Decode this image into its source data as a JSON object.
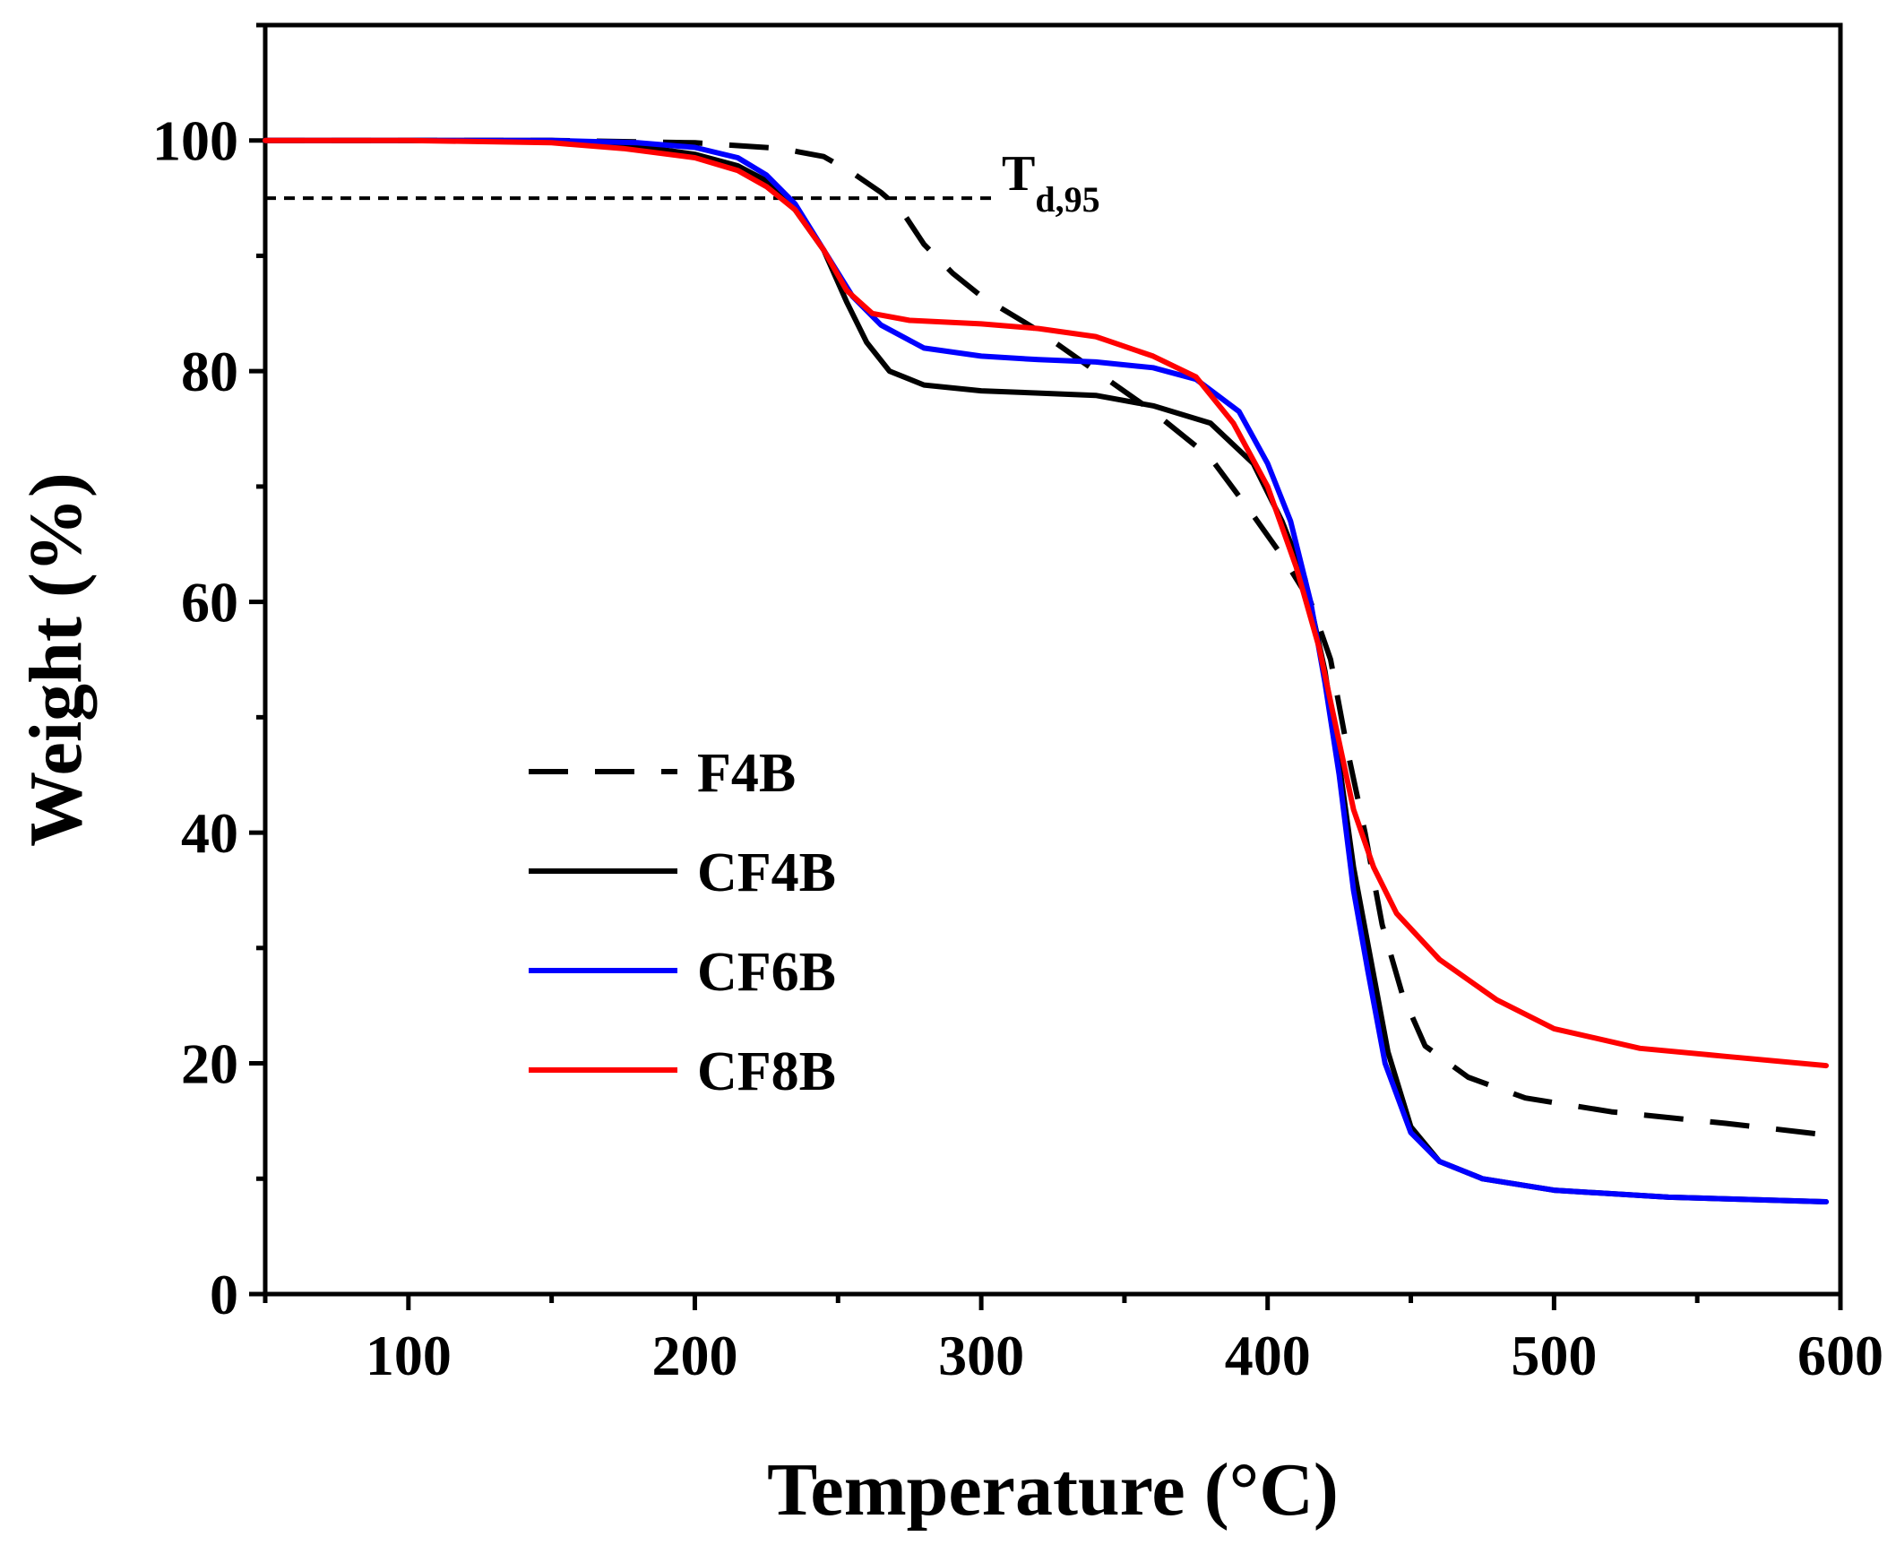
{
  "chart_data": {
    "type": "line",
    "title": "",
    "xlabel": "Temperature (°C)",
    "ylabel": "Weight (%)",
    "xlim": [
      50,
      600
    ],
    "ylim": [
      0,
      110
    ],
    "xticks": [
      100,
      200,
      300,
      400,
      500,
      600
    ],
    "yticks": [
      0,
      20,
      40,
      60,
      80,
      100
    ],
    "x_minor_step": 50,
    "y_minor_step": 10,
    "grid": false,
    "legend_position": "left-bottom",
    "reference_line": {
      "y": 95,
      "x_start": 50,
      "x_end": 305,
      "style": "dotted"
    },
    "annotation": {
      "base": "T",
      "subscript": "d,95"
    },
    "series": [
      {
        "name": "F4B",
        "color": "#000000",
        "style": "dashed",
        "points": [
          [
            50,
            100
          ],
          [
            100,
            100
          ],
          [
            150,
            100
          ],
          [
            200,
            99.8
          ],
          [
            230,
            99.3
          ],
          [
            245,
            98.6
          ],
          [
            255,
            97.2
          ],
          [
            265,
            95.5
          ],
          [
            272,
            94
          ],
          [
            280,
            91
          ],
          [
            290,
            88.5
          ],
          [
            300,
            86.5
          ],
          [
            320,
            83.5
          ],
          [
            340,
            80
          ],
          [
            360,
            76.5
          ],
          [
            380,
            72.5
          ],
          [
            395,
            67.5
          ],
          [
            405,
            64
          ],
          [
            415,
            60
          ],
          [
            422,
            55
          ],
          [
            428,
            47
          ],
          [
            434,
            40
          ],
          [
            440,
            32
          ],
          [
            447,
            26
          ],
          [
            455,
            21.5
          ],
          [
            470,
            18.8
          ],
          [
            490,
            17
          ],
          [
            520,
            15.8
          ],
          [
            560,
            14.8
          ],
          [
            595,
            13.8
          ]
        ]
      },
      {
        "name": "CF4B",
        "color": "#000000",
        "style": "solid",
        "points": [
          [
            50,
            100
          ],
          [
            100,
            100
          ],
          [
            150,
            100
          ],
          [
            180,
            99.5
          ],
          [
            200,
            98.8
          ],
          [
            215,
            97.8
          ],
          [
            225,
            96.5
          ],
          [
            235,
            94
          ],
          [
            245,
            90.5
          ],
          [
            253,
            86
          ],
          [
            260,
            82.5
          ],
          [
            268,
            80
          ],
          [
            280,
            78.8
          ],
          [
            300,
            78.3
          ],
          [
            320,
            78.1
          ],
          [
            340,
            77.9
          ],
          [
            360,
            77
          ],
          [
            380,
            75.5
          ],
          [
            395,
            72
          ],
          [
            405,
            67
          ],
          [
            413,
            62
          ],
          [
            420,
            54
          ],
          [
            425,
            46
          ],
          [
            430,
            37
          ],
          [
            436,
            29
          ],
          [
            442,
            21
          ],
          [
            450,
            14.5
          ],
          [
            460,
            11.5
          ],
          [
            475,
            10
          ],
          [
            500,
            9
          ],
          [
            540,
            8.4
          ],
          [
            595,
            8
          ]
        ]
      },
      {
        "name": "CF6B",
        "color": "#0000ff",
        "style": "solid",
        "points": [
          [
            50,
            100
          ],
          [
            100,
            100
          ],
          [
            150,
            100
          ],
          [
            180,
            99.8
          ],
          [
            200,
            99.4
          ],
          [
            215,
            98.5
          ],
          [
            225,
            97
          ],
          [
            235,
            94.5
          ],
          [
            245,
            90.5
          ],
          [
            255,
            86.5
          ],
          [
            265,
            84
          ],
          [
            280,
            82
          ],
          [
            300,
            81.3
          ],
          [
            320,
            81
          ],
          [
            340,
            80.8
          ],
          [
            360,
            80.3
          ],
          [
            375,
            79.3
          ],
          [
            390,
            76.5
          ],
          [
            400,
            72
          ],
          [
            408,
            67
          ],
          [
            415,
            60
          ],
          [
            420,
            53
          ],
          [
            425,
            45
          ],
          [
            430,
            35
          ],
          [
            435,
            28
          ],
          [
            441,
            20
          ],
          [
            450,
            14
          ],
          [
            460,
            11.5
          ],
          [
            475,
            10
          ],
          [
            500,
            9
          ],
          [
            540,
            8.4
          ],
          [
            595,
            8
          ]
        ]
      },
      {
        "name": "CF8B",
        "color": "#ff0000",
        "style": "solid",
        "points": [
          [
            50,
            100
          ],
          [
            100,
            100
          ],
          [
            150,
            99.8
          ],
          [
            175,
            99.3
          ],
          [
            200,
            98.5
          ],
          [
            215,
            97.4
          ],
          [
            225,
            96
          ],
          [
            235,
            94
          ],
          [
            245,
            90.5
          ],
          [
            253,
            87
          ],
          [
            262,
            85
          ],
          [
            275,
            84.4
          ],
          [
            300,
            84.1
          ],
          [
            320,
            83.7
          ],
          [
            340,
            83
          ],
          [
            360,
            81.3
          ],
          [
            375,
            79.5
          ],
          [
            388,
            75.5
          ],
          [
            400,
            70
          ],
          [
            410,
            63
          ],
          [
            418,
            56
          ],
          [
            424,
            49
          ],
          [
            430,
            42
          ],
          [
            437,
            37
          ],
          [
            445,
            33
          ],
          [
            460,
            29
          ],
          [
            480,
            25.5
          ],
          [
            500,
            23
          ],
          [
            530,
            21.3
          ],
          [
            560,
            20.6
          ],
          [
            595,
            19.8
          ]
        ]
      }
    ]
  }
}
